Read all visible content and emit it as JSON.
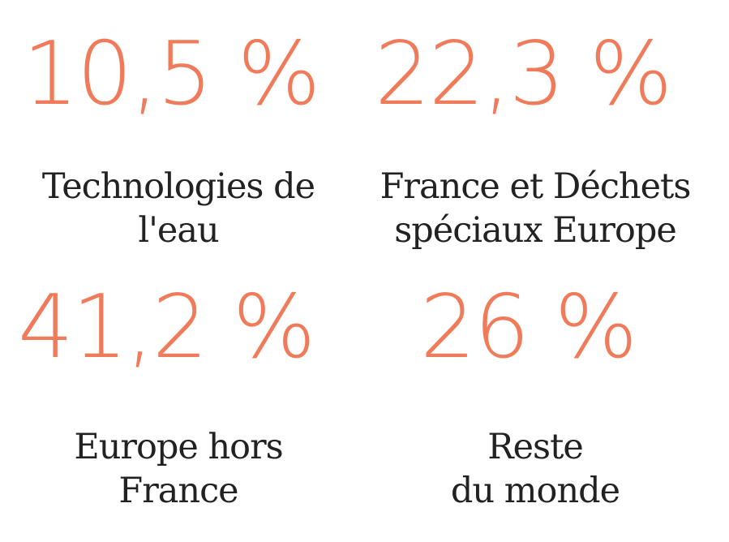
{
  "accent_color": "#F07B5A",
  "stats": [
    {
      "value": "10,5 %",
      "label_line1": "Technologies de",
      "label_line2": "l'eau"
    },
    {
      "value": "22,3 %",
      "label_line1": "France et Déchets",
      "label_line2": "spéciaux Europe"
    },
    {
      "value": "41,2 %",
      "label_line1": "Europe hors",
      "label_line2": "France"
    },
    {
      "value": "26 %",
      "label_line1": "Reste",
      "label_line2": "du monde"
    }
  ]
}
